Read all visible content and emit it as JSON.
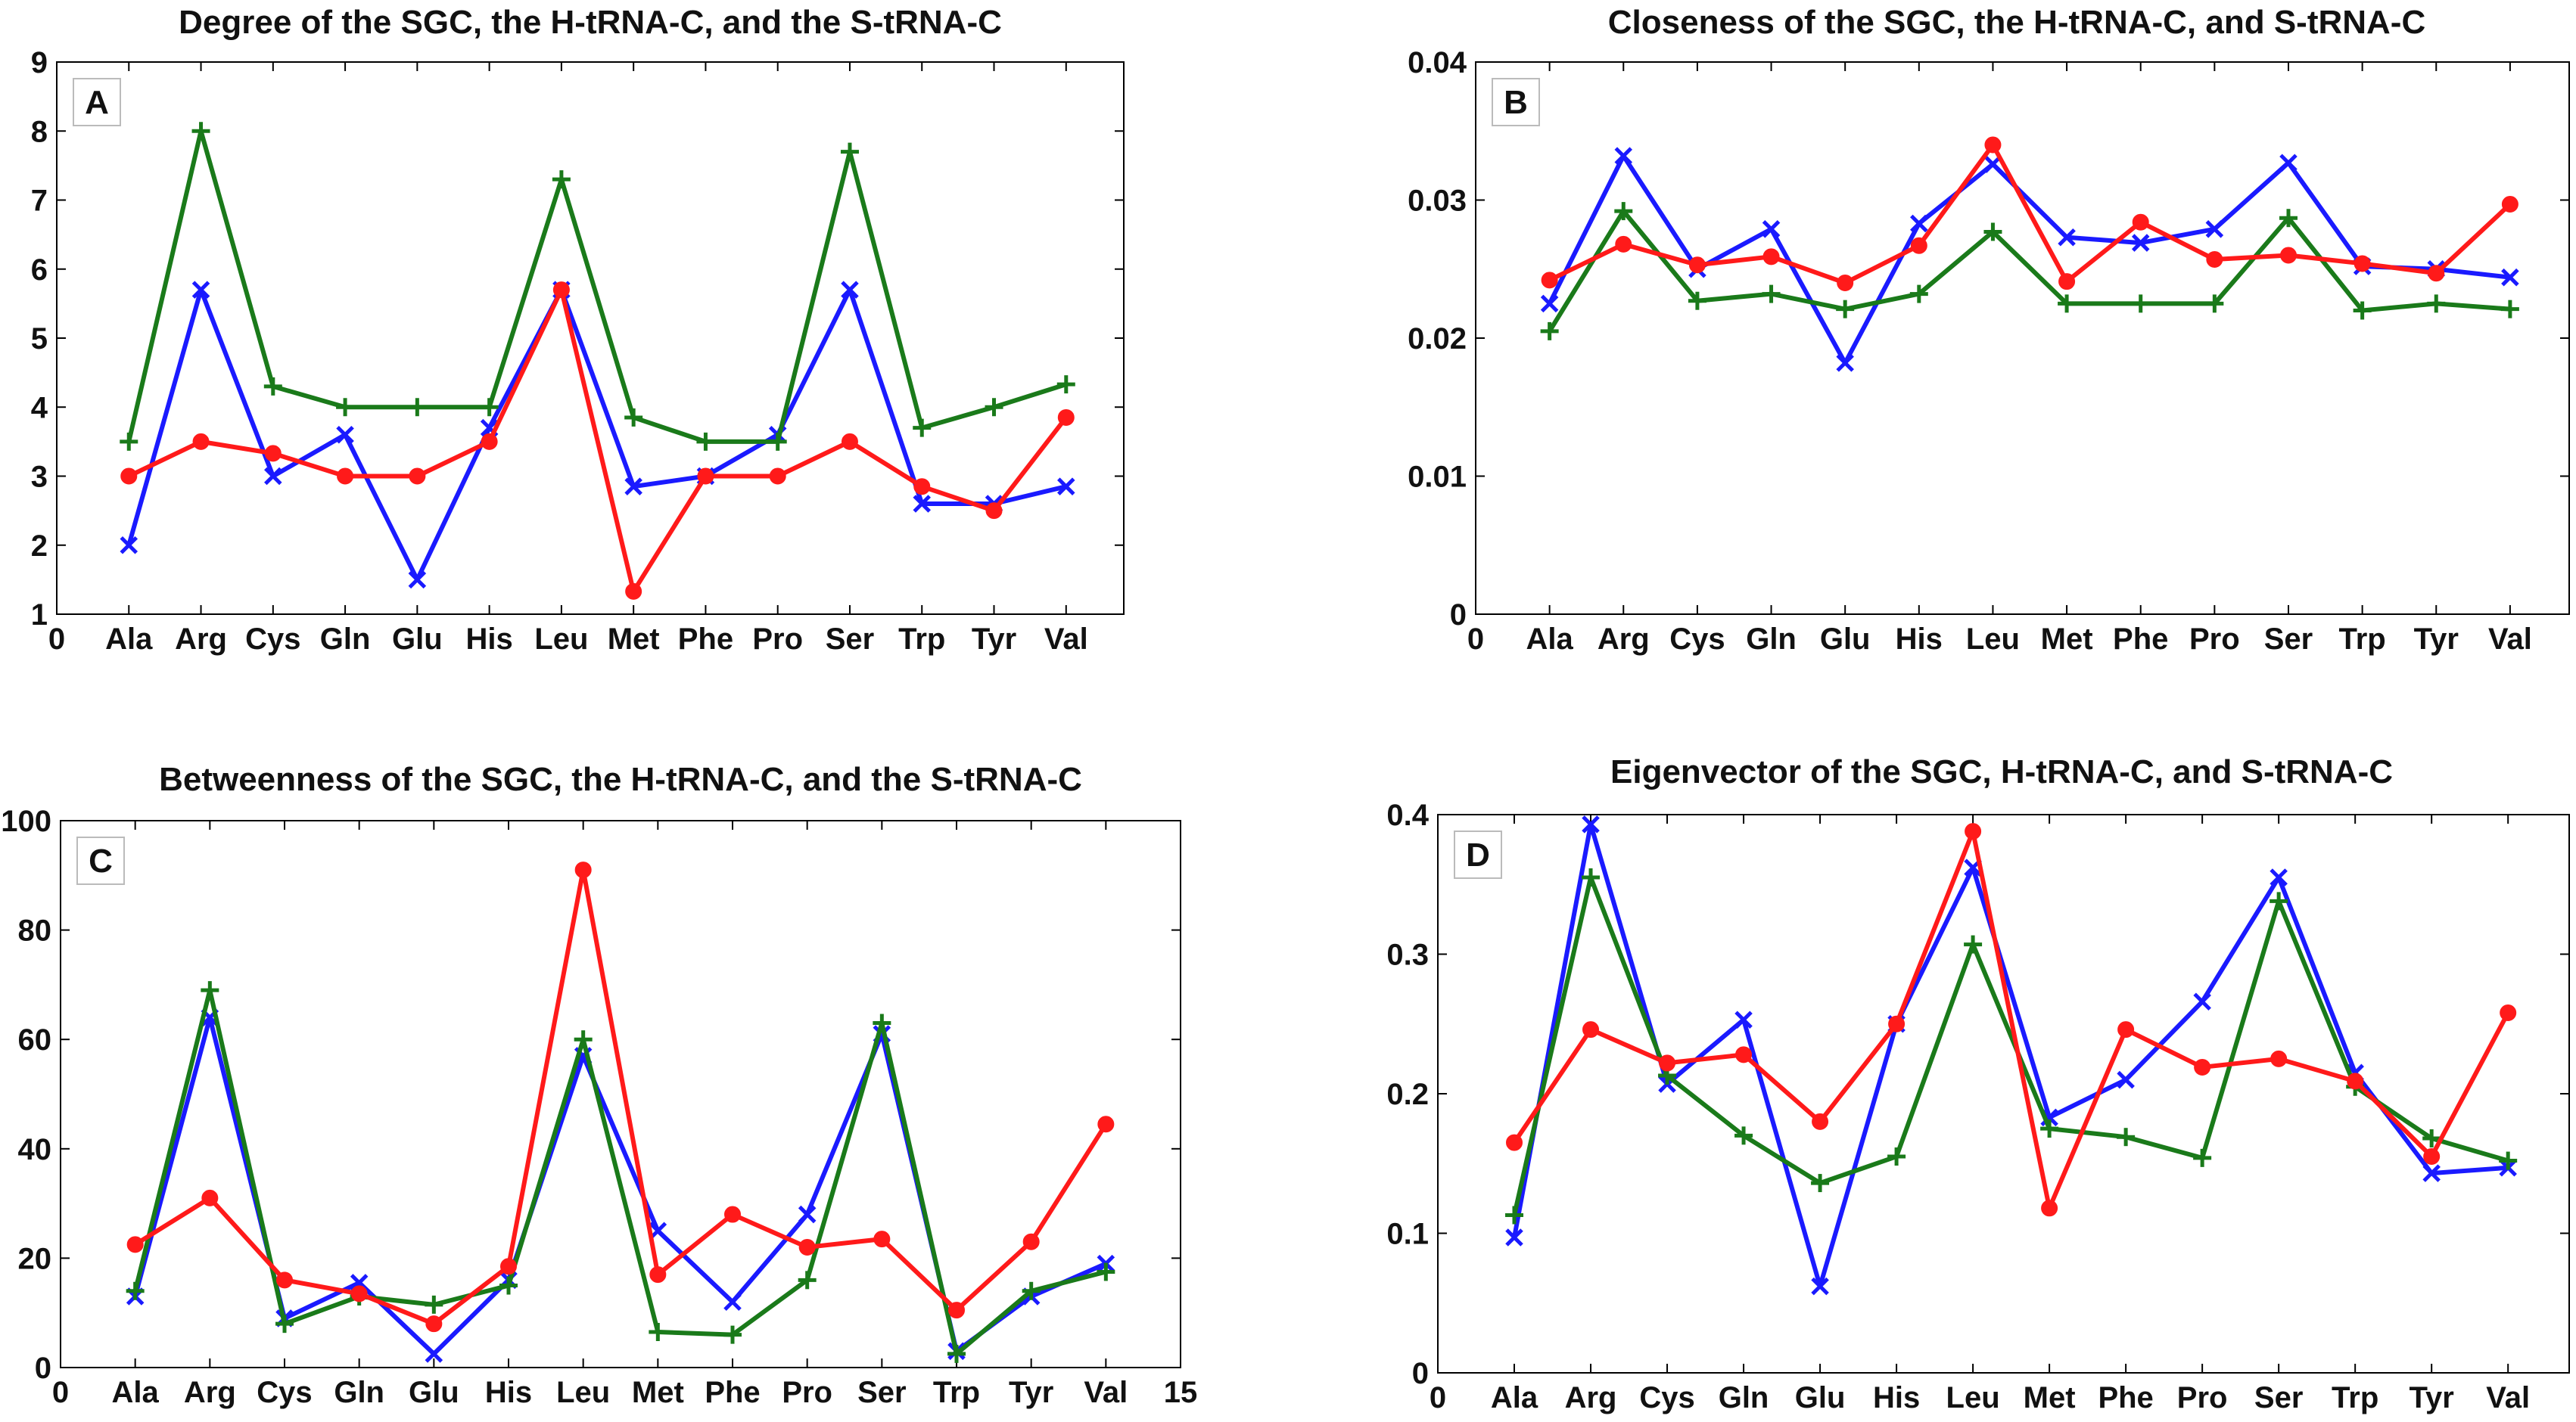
{
  "chart_data": [
    {
      "type": "line",
      "panel_label": "A",
      "title": "Degree of the SGC, the H-tRNA-C, and the S-tRNA-C",
      "categories": [
        "Ala",
        "Arg",
        "Cys",
        "Gln",
        "Glu",
        "His",
        "Leu",
        "Met",
        "Phe",
        "Pro",
        "Ser",
        "Trp",
        "Tyr",
        "Val"
      ],
      "xlim": [
        0,
        14.8
      ],
      "x_extra_ticks": [
        {
          "x": 0,
          "label": "0"
        }
      ],
      "ylim": [
        1,
        9
      ],
      "yticks": [
        1,
        2,
        3,
        4,
        5,
        6,
        7,
        8,
        9
      ],
      "ytick_labels": [
        "1",
        "2",
        "3",
        "4",
        "5",
        "6",
        "7",
        "8",
        "9"
      ],
      "series": [
        {
          "name": "SGC",
          "color": "#1a1aff",
          "marker": "x",
          "values": [
            2.0,
            5.7,
            3.0,
            3.6,
            1.5,
            3.7,
            5.7,
            2.85,
            3.0,
            3.6,
            5.7,
            2.6,
            2.6,
            2.85
          ]
        },
        {
          "name": "H-tRNA-C",
          "color": "#1a7a1a",
          "marker": "+",
          "values": [
            3.5,
            8.0,
            4.3,
            4.0,
            4.0,
            4.0,
            7.3,
            3.85,
            3.5,
            3.5,
            7.7,
            3.7,
            4.0,
            4.33
          ]
        },
        {
          "name": "S-tRNA-C",
          "color": "#ff1a1a",
          "marker": "o",
          "values": [
            3.0,
            3.5,
            3.33,
            3.0,
            3.0,
            3.5,
            5.7,
            1.33,
            3.0,
            3.0,
            3.5,
            2.85,
            2.5,
            3.85
          ]
        }
      ]
    },
    {
      "type": "line",
      "panel_label": "B",
      "title": "Closeness of the SGC, the H-tRNA-C, and S-tRNA-C",
      "categories": [
        "Ala",
        "Arg",
        "Cys",
        "Gln",
        "Glu",
        "His",
        "Leu",
        "Met",
        "Phe",
        "Pro",
        "Ser",
        "Trp",
        "Tyr",
        "Val"
      ],
      "xlim": [
        0,
        14.8
      ],
      "x_extra_ticks": [
        {
          "x": 0,
          "label": "0"
        }
      ],
      "ylim": [
        0,
        0.04
      ],
      "yticks": [
        0,
        0.01,
        0.02,
        0.03,
        0.04
      ],
      "ytick_labels": [
        "0",
        "0.01",
        "0.02",
        "0.03",
        "0.04"
      ],
      "series": [
        {
          "name": "SGC",
          "color": "#1a1aff",
          "marker": "x",
          "values": [
            0.0225,
            0.0332,
            0.025,
            0.0279,
            0.0182,
            0.0283,
            0.0326,
            0.0273,
            0.0269,
            0.0279,
            0.0327,
            0.0252,
            0.025,
            0.0244
          ]
        },
        {
          "name": "H-tRNA-C",
          "color": "#1a7a1a",
          "marker": "+",
          "values": [
            0.0205,
            0.0292,
            0.0227,
            0.0232,
            0.0221,
            0.0232,
            0.0277,
            0.0225,
            0.0225,
            0.0225,
            0.0287,
            0.022,
            0.0225,
            0.0221
          ]
        },
        {
          "name": "S-tRNA-C",
          "color": "#ff1a1a",
          "marker": "o",
          "values": [
            0.0242,
            0.0268,
            0.0253,
            0.0259,
            0.024,
            0.0267,
            0.034,
            0.0241,
            0.0284,
            0.0257,
            0.026,
            0.0254,
            0.0247,
            0.0297
          ]
        }
      ]
    },
    {
      "type": "line",
      "panel_label": "C",
      "title": "Betweenness of the SGC, the H-tRNA-C, and the S-tRNA-C",
      "categories": [
        "Ala",
        "Arg",
        "Cys",
        "Gln",
        "Glu",
        "His",
        "Leu",
        "Met",
        "Phe",
        "Pro",
        "Ser",
        "Trp",
        "Tyr",
        "Val"
      ],
      "xlim": [
        0,
        15
      ],
      "x_extra_ticks": [
        {
          "x": 0,
          "label": "0"
        },
        {
          "x": 15,
          "label": "15"
        }
      ],
      "ylim": [
        0,
        100
      ],
      "yticks": [
        0,
        20,
        40,
        60,
        80,
        100
      ],
      "ytick_labels": [
        "0",
        "20",
        "40",
        "60",
        "80",
        "100"
      ],
      "series": [
        {
          "name": "SGC",
          "color": "#1a1aff",
          "marker": "x",
          "values": [
            13,
            64,
            9,
            15.5,
            2.5,
            16,
            57,
            25,
            12,
            28,
            61,
            3,
            13,
            19
          ]
        },
        {
          "name": "H-tRNA-C",
          "color": "#1a7a1a",
          "marker": "+",
          "values": [
            14,
            69,
            8,
            13,
            11.5,
            15,
            60,
            6.5,
            6,
            16,
            63,
            2.5,
            14,
            17.5
          ]
        },
        {
          "name": "S-tRNA-C",
          "color": "#ff1a1a",
          "marker": "o",
          "values": [
            22.5,
            31,
            16,
            13.5,
            8,
            18.5,
            91,
            17,
            28,
            22,
            23.5,
            10.5,
            23,
            44.5
          ]
        }
      ]
    },
    {
      "type": "line",
      "panel_label": "D",
      "title": "Eigenvector of the SGC, H-tRNA-C, and S-tRNA-C",
      "categories": [
        "Ala",
        "Arg",
        "Cys",
        "Gln",
        "Glu",
        "His",
        "Leu",
        "Met",
        "Phe",
        "Pro",
        "Ser",
        "Trp",
        "Tyr",
        "Val"
      ],
      "xlim": [
        0,
        14.8
      ],
      "x_extra_ticks": [
        {
          "x": 0,
          "label": "0"
        }
      ],
      "ylim": [
        0,
        0.4
      ],
      "yticks": [
        0,
        0.1,
        0.2,
        0.3,
        0.4
      ],
      "ytick_labels": [
        "0",
        "0.1",
        "0.2",
        "0.3",
        "0.4"
      ],
      "series": [
        {
          "name": "SGC",
          "color": "#1a1aff",
          "marker": "x",
          "values": [
            0.097,
            0.393,
            0.207,
            0.253,
            0.062,
            0.25,
            0.362,
            0.183,
            0.21,
            0.266,
            0.355,
            0.215,
            0.143,
            0.147
          ]
        },
        {
          "name": "H-tRNA-C",
          "color": "#1a7a1a",
          "marker": "+",
          "values": [
            0.113,
            0.355,
            0.213,
            0.17,
            0.136,
            0.155,
            0.307,
            0.175,
            0.169,
            0.154,
            0.338,
            0.205,
            0.168,
            0.152
          ]
        },
        {
          "name": "S-tRNA-C",
          "color": "#ff1a1a",
          "marker": "o",
          "values": [
            0.165,
            0.246,
            0.222,
            0.228,
            0.18,
            0.25,
            0.388,
            0.118,
            0.246,
            0.219,
            0.225,
            0.209,
            0.155,
            0.258
          ]
        }
      ]
    }
  ]
}
